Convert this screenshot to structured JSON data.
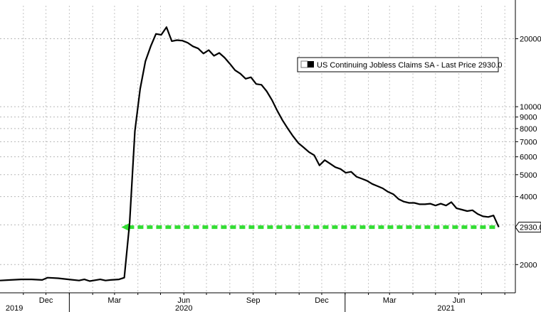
{
  "chart_data": {
    "type": "line",
    "y_scale": "log",
    "ylim": [
      1500,
      28000
    ],
    "grid": true,
    "y_ticks": [
      {
        "value": 20000,
        "label": "20000"
      },
      {
        "value": 10000,
        "label": "10000"
      },
      {
        "value": 9000,
        "label": "9000"
      },
      {
        "value": 8000,
        "label": "8000"
      },
      {
        "value": 7000,
        "label": "7000"
      },
      {
        "value": 6000,
        "label": "6000"
      },
      {
        "value": 5000,
        "label": "5000"
      },
      {
        "value": 4000,
        "label": "4000"
      },
      {
        "value": 2000,
        "label": "2000"
      }
    ],
    "x_month_labels": [
      {
        "label": "Dec",
        "date": "2019-12-01"
      },
      {
        "label": "Mar",
        "date": "2020-03-01"
      },
      {
        "label": "Jun",
        "date": "2020-06-01"
      },
      {
        "label": "Sep",
        "date": "2020-09-01"
      },
      {
        "label": "Dec",
        "date": "2020-12-01"
      },
      {
        "label": "Mar",
        "date": "2021-03-01"
      },
      {
        "label": "Jun",
        "date": "2021-06-01"
      }
    ],
    "x_year_labels": [
      {
        "label": "2019",
        "date": "2019-10-20"
      },
      {
        "label": "2020",
        "date": "2020-06-01"
      },
      {
        "label": "2021",
        "date": "2021-05-15"
      }
    ],
    "legend": {
      "label": "US Continuing Jobless Claims SA - Last Price 2930.0",
      "placement": "top-right"
    },
    "last_value_label": "2930.0",
    "reference_line": {
      "value": 2930,
      "color": "#33dd33",
      "style": "dashed-arrow"
    },
    "series": [
      {
        "name": "US Continuing Jobless Claims SA",
        "color": "#000000",
        "points": [
          [
            "2019-10-01",
            1700
          ],
          [
            "2019-10-15",
            1710
          ],
          [
            "2019-10-29",
            1720
          ],
          [
            "2019-11-12",
            1720
          ],
          [
            "2019-11-26",
            1710
          ],
          [
            "2019-12-03",
            1750
          ],
          [
            "2019-12-17",
            1740
          ],
          [
            "2019-12-31",
            1720
          ],
          [
            "2020-01-14",
            1700
          ],
          [
            "2020-01-21",
            1720
          ],
          [
            "2020-01-28",
            1690
          ],
          [
            "2020-02-11",
            1720
          ],
          [
            "2020-02-18",
            1700
          ],
          [
            "2020-02-25",
            1710
          ],
          [
            "2020-03-07",
            1720
          ],
          [
            "2020-03-14",
            1750
          ],
          [
            "2020-03-21",
            3060
          ],
          [
            "2020-03-28",
            7800
          ],
          [
            "2020-04-04",
            12000
          ],
          [
            "2020-04-11",
            15900
          ],
          [
            "2020-04-18",
            18500
          ],
          [
            "2020-04-25",
            21000
          ],
          [
            "2020-05-02",
            20800
          ],
          [
            "2020-05-09",
            22500
          ],
          [
            "2020-05-16",
            19500
          ],
          [
            "2020-05-23",
            19700
          ],
          [
            "2020-05-30",
            19600
          ],
          [
            "2020-06-06",
            19200
          ],
          [
            "2020-06-13",
            18500
          ],
          [
            "2020-06-20",
            18100
          ],
          [
            "2020-06-27",
            17200
          ],
          [
            "2020-07-04",
            17800
          ],
          [
            "2020-07-11",
            16800
          ],
          [
            "2020-07-18",
            17300
          ],
          [
            "2020-07-25",
            16500
          ],
          [
            "2020-08-01",
            15500
          ],
          [
            "2020-08-08",
            14500
          ],
          [
            "2020-08-15",
            14000
          ],
          [
            "2020-08-22",
            13300
          ],
          [
            "2020-08-29",
            13500
          ],
          [
            "2020-09-05",
            12600
          ],
          [
            "2020-09-12",
            12500
          ],
          [
            "2020-09-19",
            11700
          ],
          [
            "2020-09-26",
            10700
          ],
          [
            "2020-10-03",
            9600
          ],
          [
            "2020-10-10",
            8700
          ],
          [
            "2020-10-17",
            8000
          ],
          [
            "2020-10-24",
            7400
          ],
          [
            "2020-10-31",
            6900
          ],
          [
            "2020-11-07",
            6600
          ],
          [
            "2020-11-14",
            6300
          ],
          [
            "2020-11-21",
            6100
          ],
          [
            "2020-11-28",
            5500
          ],
          [
            "2020-12-05",
            5800
          ],
          [
            "2020-12-12",
            5600
          ],
          [
            "2020-12-19",
            5400
          ],
          [
            "2020-12-26",
            5300
          ],
          [
            "2021-01-02",
            5100
          ],
          [
            "2021-01-09",
            5150
          ],
          [
            "2021-01-16",
            4900
          ],
          [
            "2021-01-23",
            4800
          ],
          [
            "2021-01-30",
            4700
          ],
          [
            "2021-02-06",
            4550
          ],
          [
            "2021-02-13",
            4450
          ],
          [
            "2021-02-20",
            4350
          ],
          [
            "2021-02-27",
            4200
          ],
          [
            "2021-03-06",
            4100
          ],
          [
            "2021-03-13",
            3900
          ],
          [
            "2021-03-20",
            3800
          ],
          [
            "2021-03-27",
            3750
          ],
          [
            "2021-04-03",
            3750
          ],
          [
            "2021-04-10",
            3700
          ],
          [
            "2021-04-17",
            3700
          ],
          [
            "2021-04-24",
            3720
          ],
          [
            "2021-05-01",
            3650
          ],
          [
            "2021-05-08",
            3720
          ],
          [
            "2021-05-15",
            3650
          ],
          [
            "2021-05-22",
            3780
          ],
          [
            "2021-05-29",
            3550
          ],
          [
            "2021-06-05",
            3500
          ],
          [
            "2021-06-12",
            3450
          ],
          [
            "2021-06-19",
            3480
          ],
          [
            "2021-06-26",
            3350
          ],
          [
            "2021-07-03",
            3270
          ],
          [
            "2021-07-10",
            3250
          ],
          [
            "2021-07-17",
            3300
          ],
          [
            "2021-07-24",
            2930
          ]
        ]
      }
    ]
  }
}
